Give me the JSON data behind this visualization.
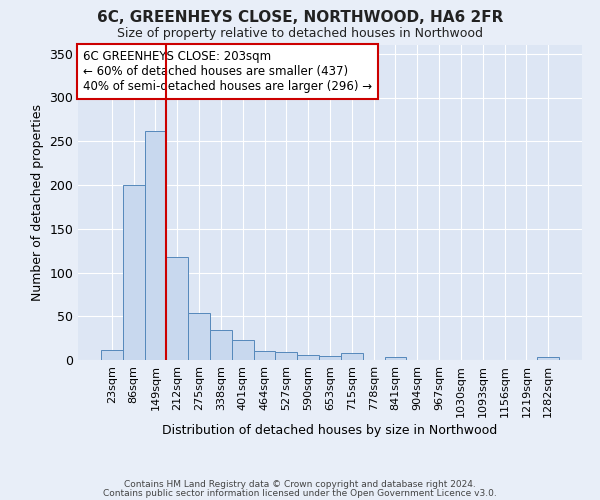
{
  "title1": "6C, GREENHEYS CLOSE, NORTHWOOD, HA6 2FR",
  "title2": "Size of property relative to detached houses in Northwood",
  "xlabel": "Distribution of detached houses by size in Northwood",
  "ylabel": "Number of detached properties",
  "categories": [
    "23sqm",
    "86sqm",
    "149sqm",
    "212sqm",
    "275sqm",
    "338sqm",
    "401sqm",
    "464sqm",
    "527sqm",
    "590sqm",
    "653sqm",
    "715sqm",
    "778sqm",
    "841sqm",
    "904sqm",
    "967sqm",
    "1030sqm",
    "1093sqm",
    "1156sqm",
    "1219sqm",
    "1282sqm"
  ],
  "values": [
    12,
    200,
    262,
    118,
    54,
    34,
    23,
    10,
    9,
    6,
    5,
    8,
    0,
    4,
    0,
    0,
    0,
    0,
    0,
    0,
    3
  ],
  "bar_color": "#c8d8ee",
  "bar_edge_color": "#5588bb",
  "vline_color": "#cc0000",
  "annotation_text": "6C GREENHEYS CLOSE: 203sqm\n← 60% of detached houses are smaller (437)\n40% of semi-detached houses are larger (296) →",
  "annotation_box_color": "#ffffff",
  "annotation_box_edge_color": "#cc0000",
  "ylim": [
    0,
    360
  ],
  "yticks": [
    0,
    50,
    100,
    150,
    200,
    250,
    300,
    350
  ],
  "footer1": "Contains HM Land Registry data © Crown copyright and database right 2024.",
  "footer2": "Contains public sector information licensed under the Open Government Licence v3.0.",
  "bg_color": "#e8eef8",
  "plot_bg_color": "#dde6f4"
}
